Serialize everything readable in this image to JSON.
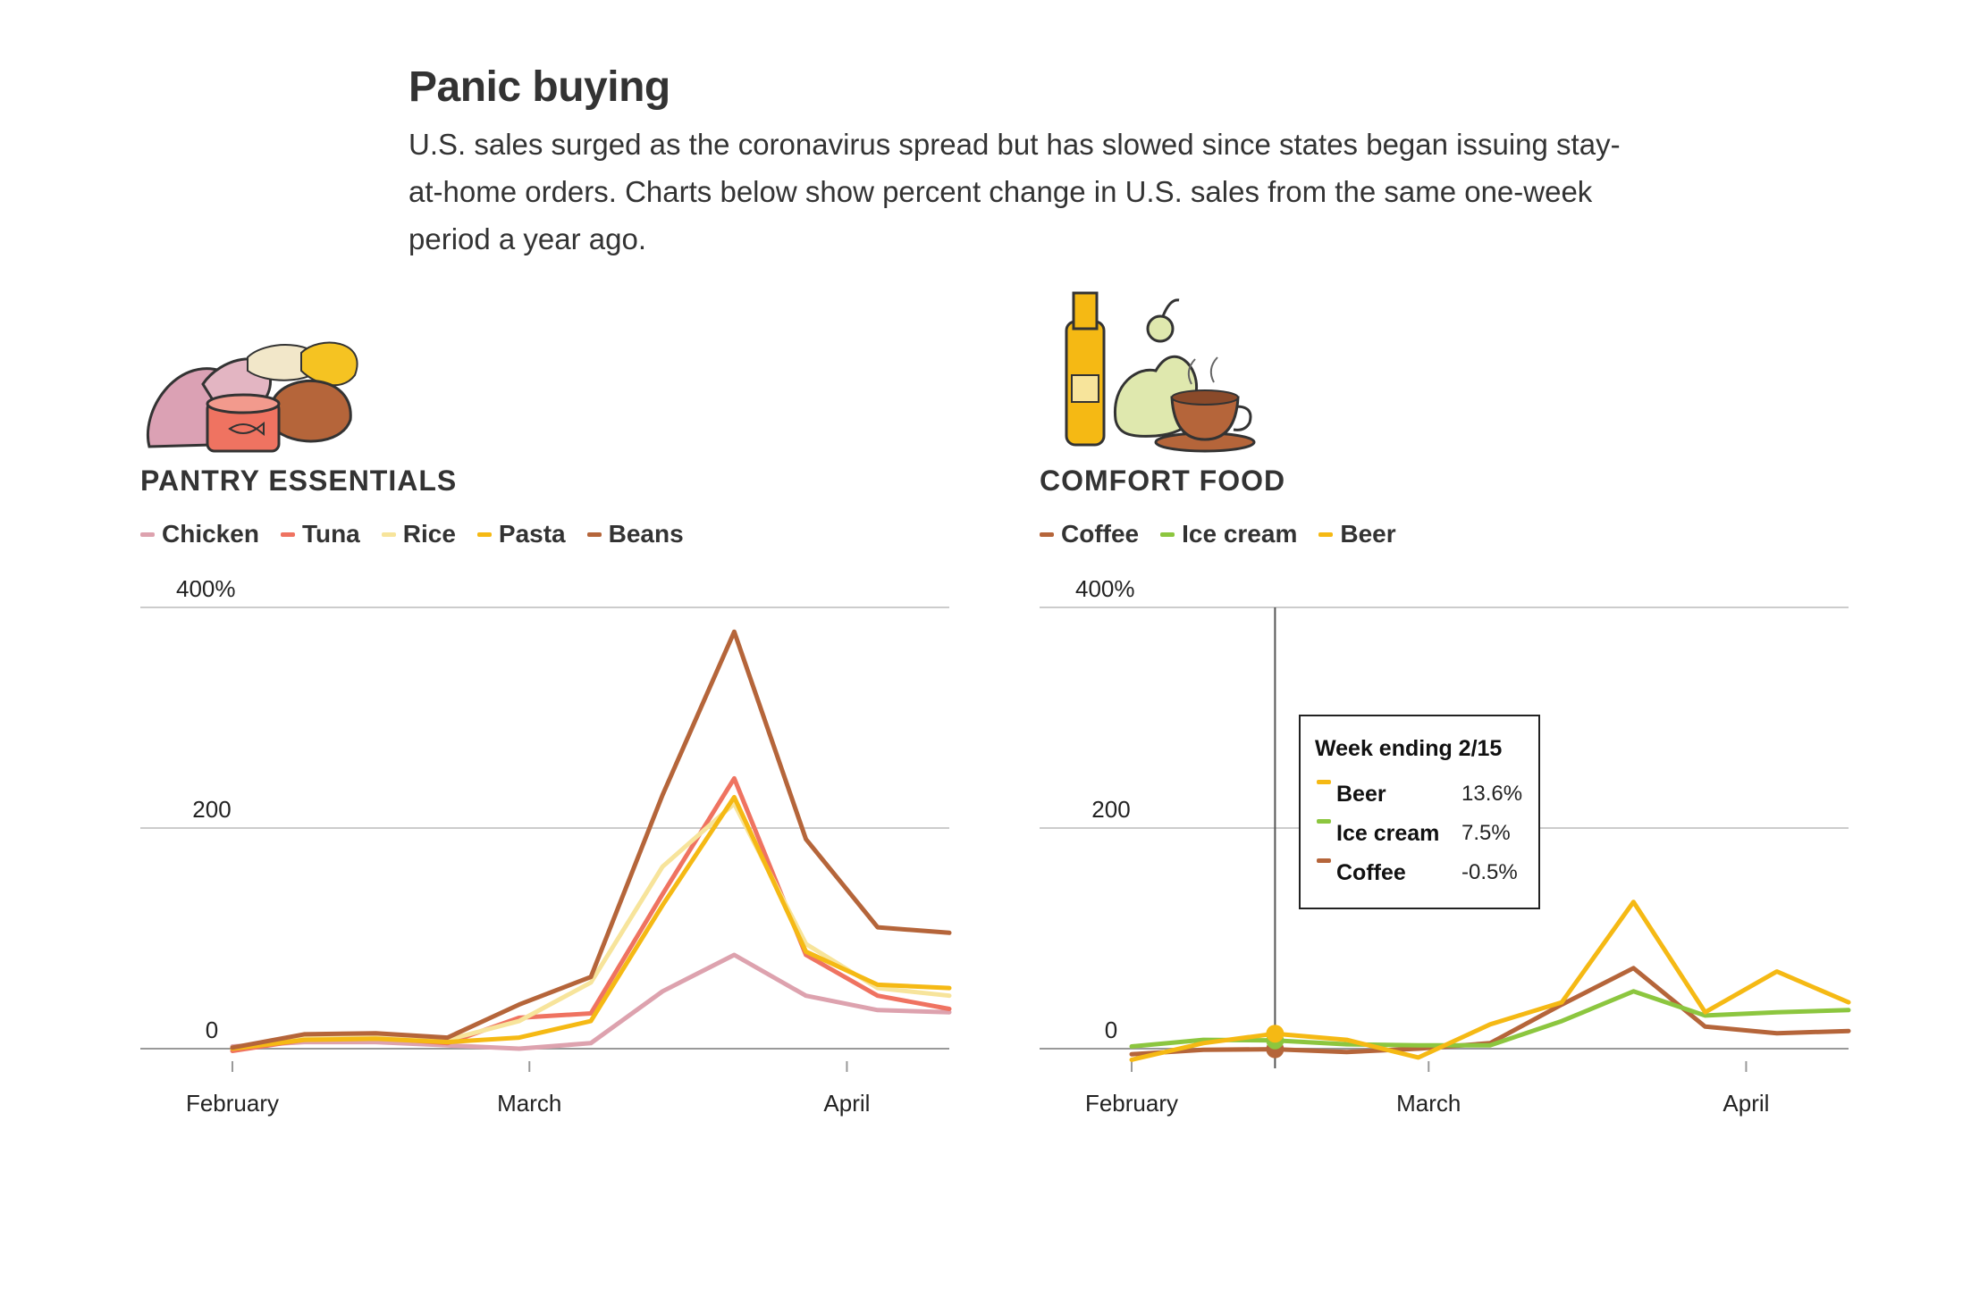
{
  "title": "Panic buying",
  "subtitle": "U.S. sales surged as the coronavirus spread but has slowed since states began issuing stay-at-home orders. Charts below show percent change in U.S. sales from the same one-week period a year ago.",
  "chart_data": [
    {
      "type": "line",
      "title": "PANTRY ESSENTIALS",
      "illustration": "pantry-illustration",
      "x": [
        "2020-02-01",
        "2020-02-08",
        "2020-02-15",
        "2020-02-22",
        "2020-02-29",
        "2020-03-07",
        "2020-03-14",
        "2020-03-21",
        "2020-03-28",
        "2020-04-04",
        "2020-04-11"
      ],
      "x_ticks": [
        {
          "label": "February",
          "x": "2020-02-01"
        },
        {
          "label": "March",
          "x": "2020-03-01"
        },
        {
          "label": "April",
          "x": "2020-04-01"
        }
      ],
      "y_ticks": [
        {
          "label": "400%",
          "value": 400
        },
        {
          "label": "200",
          "value": 200
        },
        {
          "label": "0",
          "value": 0
        }
      ],
      "ylim": [
        -10,
        400
      ],
      "grid": true,
      "legend_position": "top-left",
      "series": [
        {
          "name": "Chicken",
          "color": "#dda2ae",
          "values": [
            2,
            6,
            6,
            3,
            0,
            5,
            52,
            85,
            48,
            35,
            33
          ]
        },
        {
          "name": "Tuna",
          "color": "#ef7361",
          "values": [
            -2,
            8,
            10,
            5,
            28,
            32,
            140,
            245,
            85,
            48,
            36
          ]
        },
        {
          "name": "Rice",
          "color": "#f7e49b",
          "values": [
            1,
            10,
            12,
            8,
            25,
            60,
            165,
            222,
            95,
            55,
            48
          ]
        },
        {
          "name": "Pasta",
          "color": "#f5b914",
          "values": [
            0,
            8,
            9,
            6,
            10,
            25,
            130,
            228,
            88,
            58,
            55
          ]
        },
        {
          "name": "Beans",
          "color": "#b5653a",
          "values": [
            1,
            13,
            14,
            10,
            40,
            65,
            230,
            378,
            190,
            110,
            105
          ]
        }
      ]
    },
    {
      "type": "line",
      "title": "COMFORT FOOD",
      "illustration": "comfort-illustration",
      "x": [
        "2020-02-01",
        "2020-02-08",
        "2020-02-15",
        "2020-02-22",
        "2020-02-29",
        "2020-03-07",
        "2020-03-14",
        "2020-03-21",
        "2020-03-28",
        "2020-04-04",
        "2020-04-11"
      ],
      "x_ticks": [
        {
          "label": "February",
          "x": "2020-02-01"
        },
        {
          "label": "March",
          "x": "2020-03-01"
        },
        {
          "label": "April",
          "x": "2020-04-01"
        }
      ],
      "y_ticks": [
        {
          "label": "400%",
          "value": 400
        },
        {
          "label": "200",
          "value": 200
        },
        {
          "label": "0",
          "value": 0
        }
      ],
      "ylim": [
        -10,
        400
      ],
      "grid": true,
      "legend_position": "top-left",
      "series": [
        {
          "name": "Coffee",
          "color": "#b5653a",
          "values": [
            -5,
            -1,
            -0.5,
            -3,
            0,
            5,
            40,
            73,
            20,
            14,
            16
          ]
        },
        {
          "name": "Ice cream",
          "color": "#8cc63f",
          "values": [
            2,
            8,
            7.5,
            4,
            3,
            3,
            25,
            52,
            30,
            33,
            35
          ]
        },
        {
          "name": "Beer",
          "color": "#f5b914",
          "values": [
            -10,
            5,
            13.6,
            8,
            -8,
            22,
            42,
            133,
            33,
            70,
            42
          ]
        }
      ],
      "hover": {
        "x": "2020-02-15",
        "header": "Week ending 2/15",
        "rows": [
          {
            "name": "Beer",
            "value": "13.6%",
            "color": "#f5b914"
          },
          {
            "name": "Ice cream",
            "value": "7.5%",
            "color": "#8cc63f"
          },
          {
            "name": "Coffee",
            "value": "-0.5%",
            "color": "#b5653a"
          }
        ]
      }
    }
  ]
}
